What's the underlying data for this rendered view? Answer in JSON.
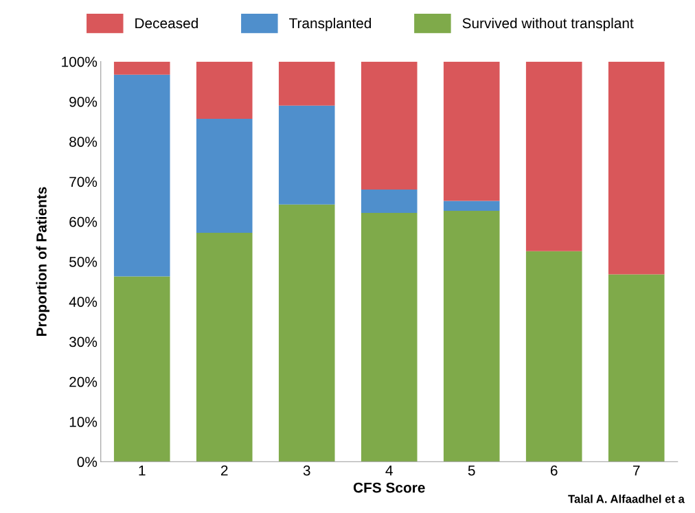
{
  "chart_data": {
    "type": "bar",
    "stacked": true,
    "xlabel": "CFS Score",
    "ylabel": "Proportion of Patients",
    "categories": [
      "1",
      "2",
      "3",
      "4",
      "5",
      "6",
      "7"
    ],
    "series": [
      {
        "name": "Survived without transplant",
        "color": "#7faa4a",
        "values": [
          46.3,
          57.2,
          64.3,
          62.2,
          62.7,
          52.6,
          46.8
        ]
      },
      {
        "name": "Transplanted",
        "color": "#4f8fcc",
        "values": [
          50.4,
          28.5,
          24.7,
          5.8,
          2.5,
          0,
          0
        ]
      },
      {
        "name": "Deceased",
        "color": "#d9575a",
        "values": [
          3.3,
          14.3,
          11.0,
          32.0,
          34.8,
          47.4,
          53.2
        ]
      }
    ],
    "ylim": [
      0,
      100
    ],
    "yticks": [
      {
        "value": 0,
        "label": "0%"
      },
      {
        "value": 10,
        "label": "10%"
      },
      {
        "value": 20,
        "label": "20%"
      },
      {
        "value": 30,
        "label": "30%"
      },
      {
        "value": 40,
        "label": "40%"
      },
      {
        "value": 50,
        "label": "50%"
      },
      {
        "value": 60,
        "label": "60%"
      },
      {
        "value": 70,
        "label": "70%"
      },
      {
        "value": 80,
        "label": "80%"
      },
      {
        "value": 90,
        "label": "90%"
      },
      {
        "value": 100,
        "label": "100%"
      }
    ],
    "grid": false,
    "legend": "top",
    "annotations": [
      "Talal A. Alfaadhel et a"
    ]
  }
}
